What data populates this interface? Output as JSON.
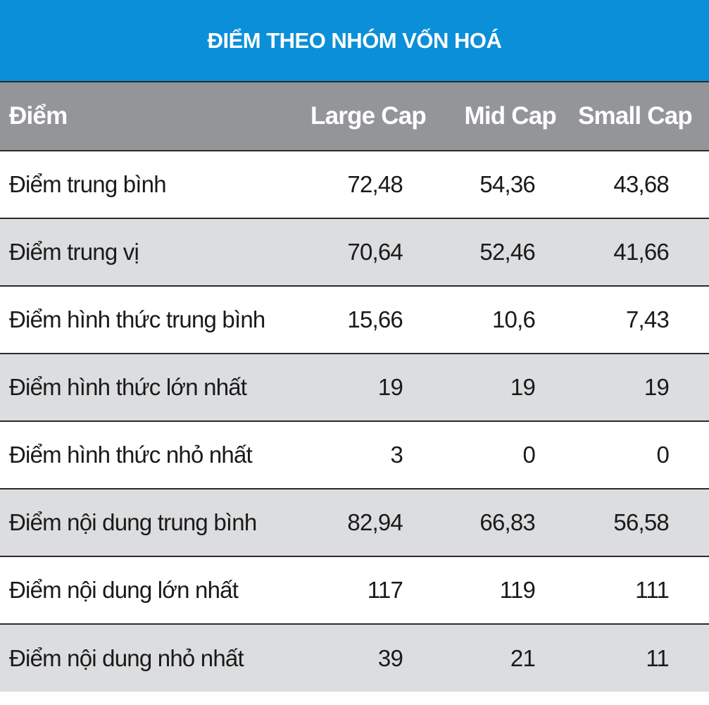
{
  "chart_data": {
    "type": "table",
    "title": "ĐIỂM THEO NHÓM VỐN HOÁ",
    "columns": [
      "Điểm",
      "Large Cap",
      "Mid Cap",
      "Small Cap"
    ],
    "rows": [
      {
        "label": "Điểm trung bình",
        "large": "72,48",
        "mid": "54,36",
        "small": "43,68"
      },
      {
        "label": "Điểm trung vị",
        "large": "70,64",
        "mid": "52,46",
        "small": "41,66"
      },
      {
        "label": "Điểm hình thức trung bình",
        "large": "15,66",
        "mid": "10,6",
        "small": "7,43"
      },
      {
        "label": "Điểm hình thức lớn nhất",
        "large": "19",
        "mid": "19",
        "small": "19"
      },
      {
        "label": "Điểm hình thức nhỏ nhất",
        "large": "3",
        "mid": "0",
        "small": "0"
      },
      {
        "label": "Điểm nội dung trung bình",
        "large": "82,94",
        "mid": "66,83",
        "small": "56,58"
      },
      {
        "label": "Điểm nội dung lớn nhất",
        "large": "117",
        "mid": "119",
        "small": "111"
      },
      {
        "label": "Điểm nội dung nhỏ nhất",
        "large": "39",
        "mid": "21",
        "small": "11"
      }
    ]
  },
  "colors": {
    "title_bg": "#0b8fd8",
    "header_bg": "#939598",
    "stripe_bg": "#dcdddf",
    "rule": "#2b2b2b"
  }
}
